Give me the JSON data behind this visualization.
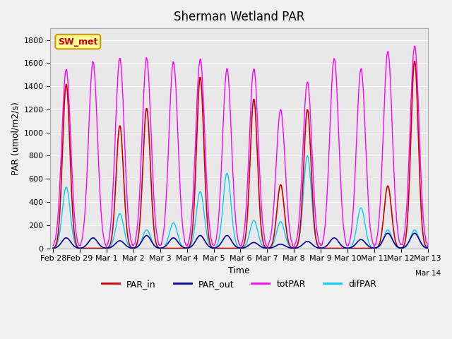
{
  "title": "Sherman Wetland PAR",
  "ylabel": "PAR (umol/m2/s)",
  "xlabel": "Time",
  "legend_label": "SW_met",
  "series": [
    "PAR_in",
    "PAR_out",
    "totPAR",
    "difPAR"
  ],
  "colors": {
    "PAR_in": "#cc0000",
    "PAR_out": "#000099",
    "totPAR": "#ff00ff",
    "difPAR": "#00ccff"
  },
  "ylim": [
    0,
    1900
  ],
  "yticks": [
    0,
    200,
    400,
    600,
    800,
    1000,
    1200,
    1400,
    1600,
    1800
  ],
  "background_color": "#e8e8e8",
  "axes_bg": "#f0f0f0",
  "grid_color": "#ffffff",
  "n_days": 15,
  "start_day": 0,
  "annotation_box_color": "#ffff99",
  "annotation_box_edgecolor": "#cc9900",
  "annotation_text_color": "#cc0000"
}
